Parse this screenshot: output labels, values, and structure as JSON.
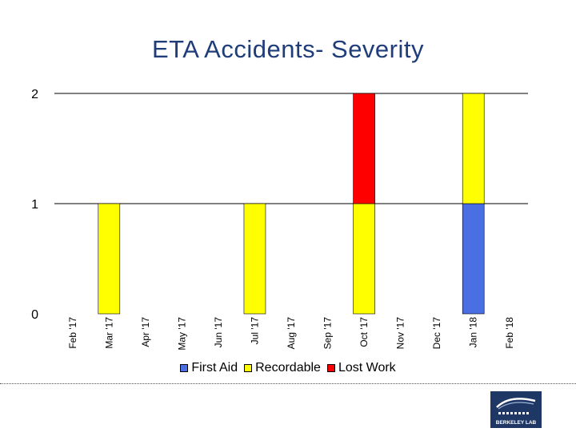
{
  "title": "ETA Accidents- Severity",
  "chart_data": {
    "type": "bar",
    "stacked": true,
    "title": "ETA Accidents- Severity",
    "categories": [
      "Feb '17",
      "Mar '17",
      "Apr '17",
      "May '17",
      "Jun '17",
      "Jul '17",
      "Aug '17",
      "Sep '17",
      "Oct '17",
      "Nov '17",
      "Dec '17",
      "Jan '18",
      "Feb '18"
    ],
    "series": [
      {
        "name": "First Aid",
        "color": "#4a6fe3",
        "values": [
          0,
          0,
          0,
          0,
          0,
          0,
          0,
          0,
          0,
          0,
          0,
          1,
          0
        ]
      },
      {
        "name": "Recordable",
        "color": "#ffff00",
        "values": [
          0,
          1,
          0,
          0,
          0,
          1,
          0,
          0,
          1,
          0,
          0,
          1,
          0
        ]
      },
      {
        "name": "Lost Work",
        "color": "#ff0000",
        "values": [
          0,
          0,
          0,
          0,
          0,
          0,
          0,
          0,
          1,
          0,
          0,
          0,
          0
        ]
      }
    ],
    "yticks": [
      0,
      1,
      2
    ],
    "ylim": [
      0,
      2
    ],
    "grid": true,
    "legend_position": "bottom"
  },
  "logo": {
    "text": "BERKELEY LAB"
  }
}
